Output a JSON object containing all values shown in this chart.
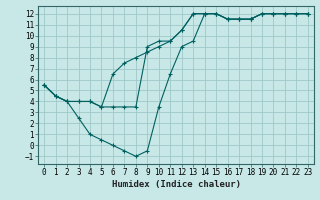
{
  "title": "",
  "xlabel": "Humidex (Indice chaleur)",
  "bg_color": "#c8e8e8",
  "grid_color": "#a0c8c8",
  "line_color": "#006060",
  "xlim": [
    -0.5,
    23.5
  ],
  "ylim": [
    -1.7,
    12.7
  ],
  "xticks": [
    0,
    1,
    2,
    3,
    4,
    5,
    6,
    7,
    8,
    9,
    10,
    11,
    12,
    13,
    14,
    15,
    16,
    17,
    18,
    19,
    20,
    21,
    22,
    23
  ],
  "yticks": [
    -1,
    0,
    1,
    2,
    3,
    4,
    5,
    6,
    7,
    8,
    9,
    10,
    11,
    12
  ],
  "line1_x": [
    0,
    1,
    2,
    3,
    4,
    5,
    6,
    7,
    8,
    9,
    10,
    11,
    12,
    13,
    14,
    15,
    16,
    17,
    18,
    19,
    20,
    21,
    22,
    23
  ],
  "line1_y": [
    5.5,
    4.5,
    4.0,
    4.0,
    4.0,
    3.5,
    6.5,
    7.5,
    8.0,
    8.5,
    9.0,
    9.5,
    10.5,
    12.0,
    12.0,
    12.0,
    11.5,
    11.5,
    11.5,
    12.0,
    12.0,
    12.0,
    12.0,
    12.0
  ],
  "line2_x": [
    0,
    1,
    2,
    3,
    4,
    5,
    6,
    7,
    8,
    9,
    10,
    11,
    12,
    13,
    14,
    15,
    16,
    17,
    18,
    19,
    20,
    21,
    22,
    23
  ],
  "line2_y": [
    5.5,
    4.5,
    4.0,
    2.5,
    1.0,
    0.5,
    0.0,
    -0.5,
    -1.0,
    -0.5,
    3.5,
    6.5,
    9.0,
    9.5,
    12.0,
    12.0,
    11.5,
    11.5,
    11.5,
    12.0,
    12.0,
    12.0,
    12.0,
    12.0
  ],
  "line3_x": [
    0,
    1,
    2,
    3,
    4,
    5,
    6,
    7,
    8,
    9,
    10,
    11,
    12,
    13,
    14,
    15,
    16,
    17,
    18,
    19,
    20,
    21,
    22,
    23
  ],
  "line3_y": [
    5.5,
    4.5,
    4.0,
    4.0,
    4.0,
    3.5,
    3.5,
    3.5,
    3.5,
    9.0,
    9.5,
    9.5,
    10.5,
    12.0,
    12.0,
    12.0,
    11.5,
    11.5,
    11.5,
    12.0,
    12.0,
    12.0,
    12.0,
    12.0
  ],
  "tick_fontsize": 5.5,
  "xlabel_fontsize": 6.5,
  "lw": 0.8,
  "ms": 3.0
}
